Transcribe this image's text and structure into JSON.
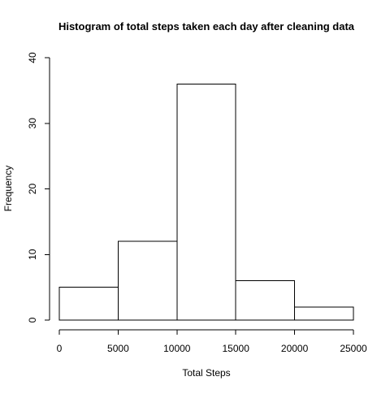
{
  "chart_data": {
    "type": "bar",
    "title": "Histogram of total steps taken each day after cleaning data",
    "xlabel": "Total Steps",
    "ylabel": "Frequency",
    "bins": [
      {
        "from": 0,
        "to": 5000,
        "count": 5
      },
      {
        "from": 5000,
        "to": 10000,
        "count": 12
      },
      {
        "from": 10000,
        "to": 15000,
        "count": 36
      },
      {
        "from": 15000,
        "to": 20000,
        "count": 6
      },
      {
        "from": 20000,
        "to": 25000,
        "count": 2
      }
    ],
    "xlim": [
      0,
      25000
    ],
    "ylim": [
      0,
      40
    ],
    "x_ticks": [
      0,
      5000,
      10000,
      15000,
      20000,
      25000
    ],
    "y_ticks": [
      0,
      10,
      20,
      30,
      40
    ],
    "grid": false,
    "bar_fill": "#ffffff",
    "bar_stroke": "#000000"
  }
}
